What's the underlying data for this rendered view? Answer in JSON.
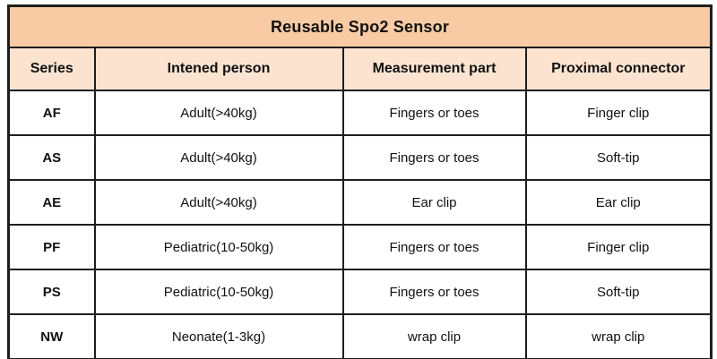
{
  "table": {
    "title": "Reusable Spo2 Sensor",
    "columns": {
      "series": "Series",
      "person": "Intened person",
      "part": "Measurement part",
      "connector": "Proximal connector"
    },
    "rows": [
      {
        "series": "AF",
        "person": "Adult(>40kg)",
        "part": "Fingers or toes",
        "connector": "Finger clip"
      },
      {
        "series": "AS",
        "person": "Adult(>40kg)",
        "part": "Fingers or toes",
        "connector": "Soft-tip"
      },
      {
        "series": "AE",
        "person": "Adult(>40kg)",
        "part": "Ear clip",
        "connector": "Ear clip"
      },
      {
        "series": "PF",
        "person": "Pediatric(10-50kg)",
        "part": "Fingers or toes",
        "connector": "Finger clip"
      },
      {
        "series": "PS",
        "person": "Pediatric(10-50kg)",
        "part": "Fingers or toes",
        "connector": "Soft-tip"
      },
      {
        "series": "NW",
        "person": "Neonate(1-3kg)",
        "part": "wrap clip",
        "connector": "wrap clip"
      }
    ],
    "colors": {
      "title_bg": "#f8cba4",
      "header_bg": "#fbe3d0",
      "body_bg": "#ffffff",
      "border": "#1e1e1e",
      "text": "#111111"
    }
  }
}
